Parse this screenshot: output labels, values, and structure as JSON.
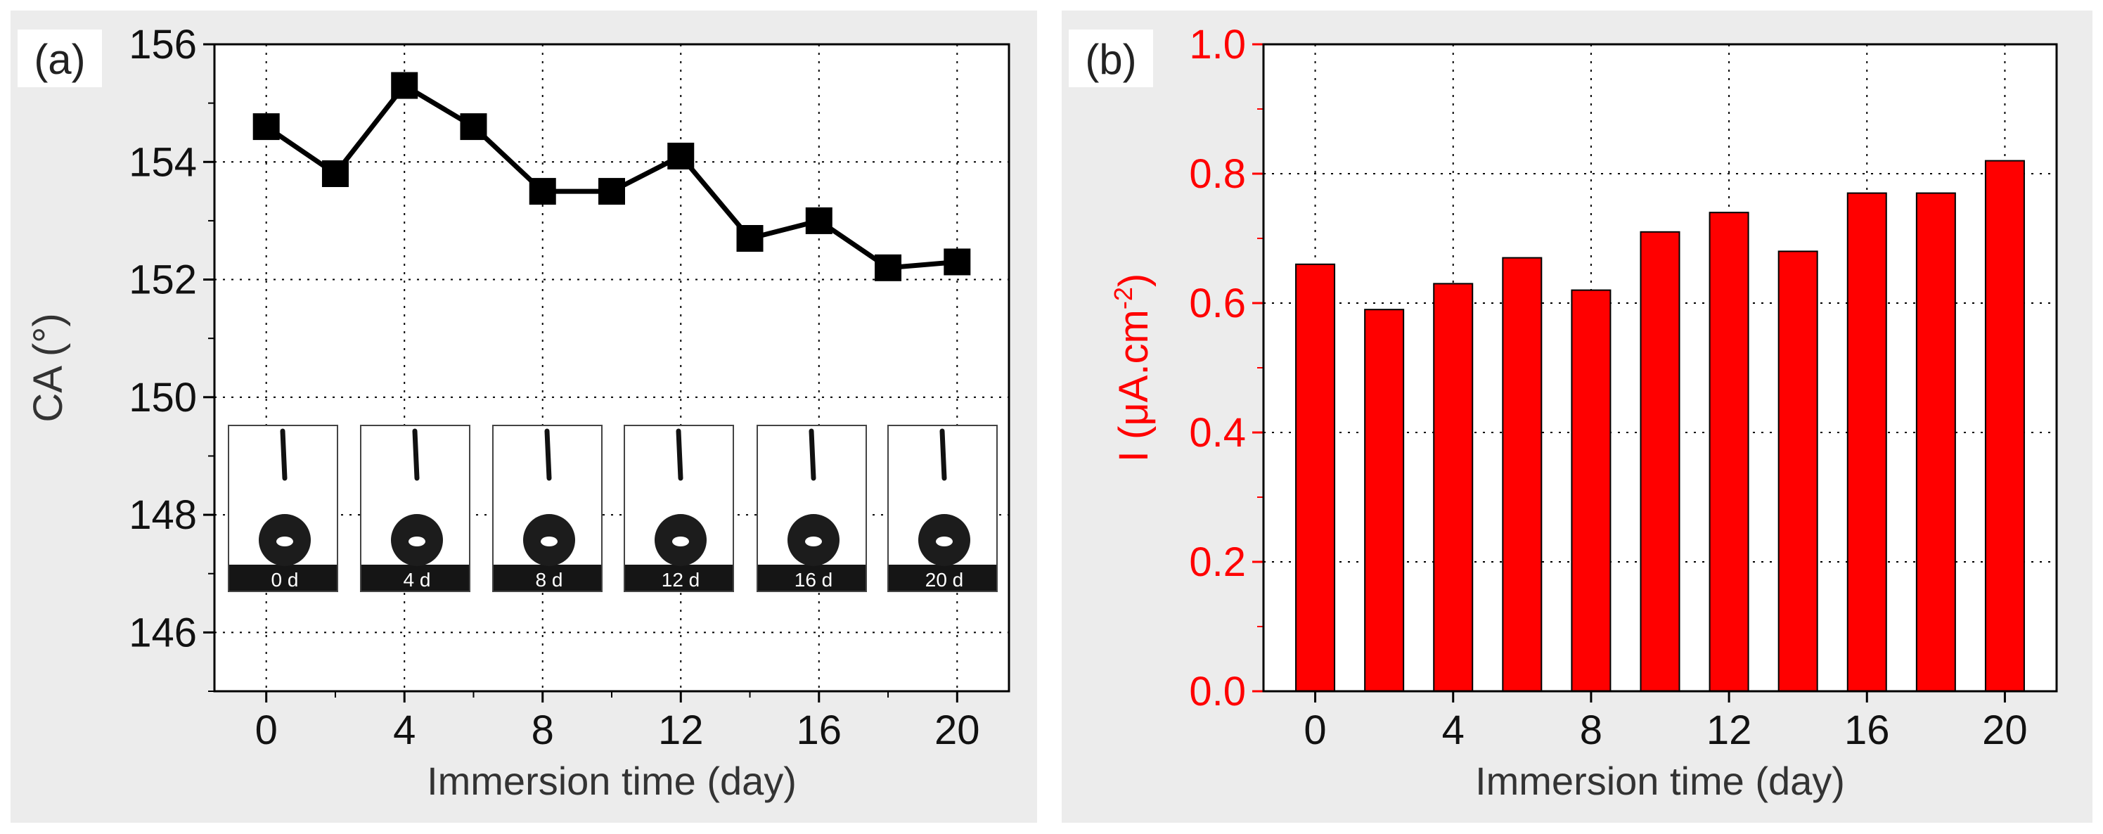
{
  "figure": {
    "panel_a_label": "(a)",
    "panel_b_label": "(b)"
  },
  "chart_data": [
    {
      "type": "line",
      "panel": "(a)",
      "xlabel": "Immersion time (day)",
      "ylabel": "CA (°)",
      "x": [
        0,
        2,
        4,
        6,
        8,
        10,
        12,
        14,
        16,
        18,
        20
      ],
      "y": [
        154.6,
        153.8,
        155.3,
        154.6,
        153.5,
        153.5,
        154.1,
        152.7,
        153.0,
        152.2,
        152.3
      ],
      "xlim": [
        -1.5,
        21.5
      ],
      "ylim": [
        145,
        156
      ],
      "xticks": [
        "0",
        "4",
        "8",
        "12",
        "16",
        "20"
      ],
      "yticks": [
        "146",
        "148",
        "150",
        "152",
        "154",
        "156"
      ],
      "grid": true,
      "marker": "square",
      "color": "#000000",
      "insets": [
        "0 d",
        "4 d",
        "8 d",
        "12 d",
        "16 d",
        "20 d"
      ]
    },
    {
      "type": "bar",
      "panel": "(b)",
      "xlabel": "Immersion time (day)",
      "ylabel_main": "I (μA.cm",
      "ylabel_sup": "-2",
      "ylabel_end": ")",
      "x": [
        0,
        2,
        4,
        6,
        8,
        10,
        12,
        14,
        16,
        18,
        20
      ],
      "values": [
        0.66,
        0.59,
        0.63,
        0.67,
        0.62,
        0.71,
        0.74,
        0.68,
        0.77,
        0.77,
        0.82
      ],
      "xlim": [
        -1.5,
        21.5
      ],
      "ylim": [
        0.0,
        1.0
      ],
      "xticks": [
        "0",
        "4",
        "8",
        "12",
        "16",
        "20"
      ],
      "yticks": [
        "0.0",
        "0.2",
        "0.4",
        "0.6",
        "0.8",
        "1.0"
      ],
      "grid": true,
      "color": "#ff0000"
    }
  ]
}
